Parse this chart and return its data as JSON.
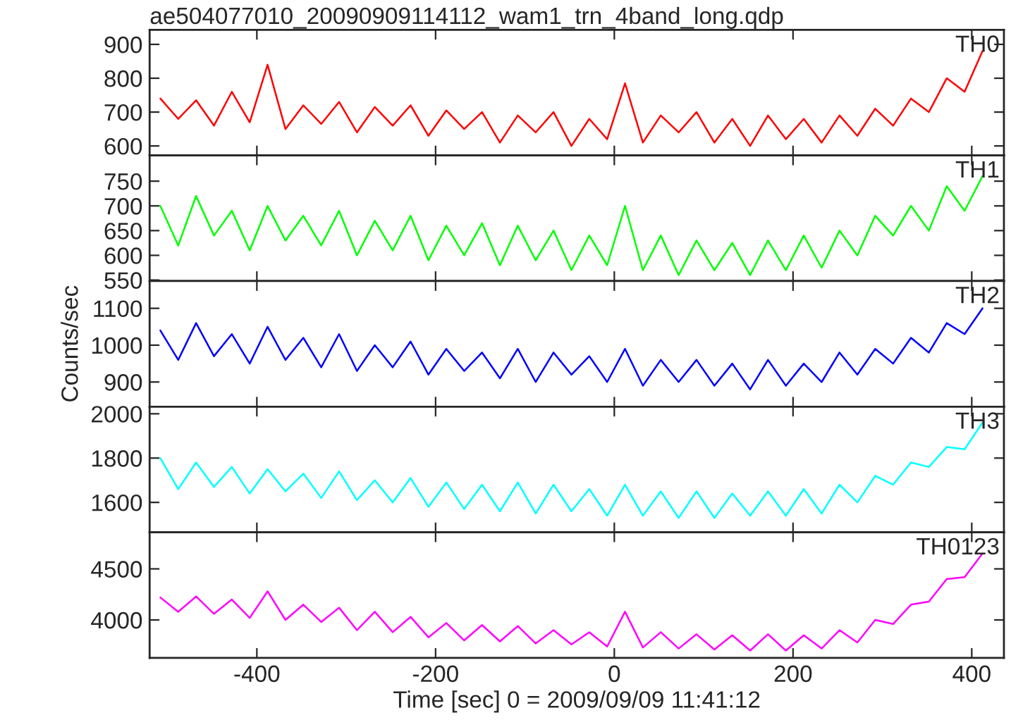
{
  "chart_data": [
    {
      "type": "line",
      "title": "ae504077010_20090909114112_wam1_trn_4band_long.qdp",
      "xlim": [
        -520,
        436
      ],
      "xticks": [
        -400,
        -200,
        0,
        200,
        400
      ],
      "ylim": [
        572,
        943
      ],
      "yticks": [
        600,
        700,
        800,
        900
      ],
      "tick_labels": "y",
      "x": [
        -508,
        -488,
        -468,
        -448,
        -428,
        -408,
        -388,
        -368,
        -348,
        -328,
        -308,
        -288,
        -268,
        -248,
        -228,
        -208,
        -188,
        -168,
        -148,
        -128,
        -108,
        -88,
        -68,
        -48,
        -28,
        -8,
        12,
        32,
        52,
        72,
        92,
        112,
        132,
        152,
        172,
        192,
        212,
        232,
        252,
        272,
        292,
        312,
        332,
        352,
        372,
        392,
        412
      ],
      "series": [
        {
          "name": "TH0",
          "color": "#ff0000",
          "values": [
            740,
            680,
            735,
            660,
            760,
            670,
            840,
            650,
            720,
            665,
            730,
            640,
            715,
            660,
            720,
            630,
            705,
            650,
            700,
            610,
            690,
            640,
            700,
            600,
            680,
            620,
            785,
            610,
            690,
            640,
            700,
            610,
            680,
            600,
            690,
            620,
            680,
            610,
            690,
            630,
            710,
            660,
            740,
            700,
            800,
            760,
            880
          ]
        }
      ]
    },
    {
      "type": "line",
      "xlim": [
        -520,
        436
      ],
      "xticks": [
        -400,
        -200,
        0,
        200,
        400
      ],
      "ylim": [
        548,
        802
      ],
      "yticks": [
        550,
        600,
        650,
        700,
        750
      ],
      "tick_labels": "y",
      "x": [
        -508,
        -488,
        -468,
        -448,
        -428,
        -408,
        -388,
        -368,
        -348,
        -328,
        -308,
        -288,
        -268,
        -248,
        -228,
        -208,
        -188,
        -168,
        -148,
        -128,
        -108,
        -88,
        -68,
        -48,
        -28,
        -8,
        12,
        32,
        52,
        72,
        92,
        112,
        132,
        152,
        172,
        192,
        212,
        232,
        252,
        272,
        292,
        312,
        332,
        352,
        372,
        392,
        412
      ],
      "series": [
        {
          "name": "TH1",
          "color": "#00ff00",
          "values": [
            700,
            620,
            720,
            640,
            690,
            610,
            700,
            630,
            680,
            620,
            690,
            600,
            670,
            610,
            680,
            590,
            660,
            600,
            665,
            580,
            660,
            590,
            650,
            570,
            640,
            580,
            700,
            570,
            640,
            560,
            630,
            570,
            625,
            560,
            630,
            570,
            640,
            575,
            650,
            600,
            680,
            640,
            700,
            650,
            740,
            690,
            760
          ]
        }
      ]
    },
    {
      "type": "line",
      "ylabel": "Counts/sec",
      "xlim": [
        -520,
        436
      ],
      "xticks": [
        -400,
        -200,
        0,
        200,
        400
      ],
      "ylim": [
        833,
        1174
      ],
      "yticks": [
        900,
        1000,
        1100
      ],
      "tick_labels": "y",
      "x": [
        -508,
        -488,
        -468,
        -448,
        -428,
        -408,
        -388,
        -368,
        -348,
        -328,
        -308,
        -288,
        -268,
        -248,
        -228,
        -208,
        -188,
        -168,
        -148,
        -128,
        -108,
        -88,
        -68,
        -48,
        -28,
        -8,
        12,
        32,
        52,
        72,
        92,
        112,
        132,
        152,
        172,
        192,
        212,
        232,
        252,
        272,
        292,
        312,
        332,
        352,
        372,
        392,
        412
      ],
      "series": [
        {
          "name": "TH2",
          "color": "#0000ff",
          "values": [
            1040,
            960,
            1060,
            970,
            1030,
            950,
            1050,
            960,
            1020,
            940,
            1030,
            930,
            1000,
            940,
            1010,
            920,
            990,
            930,
            980,
            910,
            990,
            900,
            980,
            920,
            970,
            900,
            990,
            890,
            960,
            900,
            960,
            890,
            950,
            880,
            960,
            890,
            950,
            900,
            980,
            920,
            990,
            950,
            1020,
            980,
            1060,
            1030,
            1100
          ]
        }
      ]
    },
    {
      "type": "line",
      "xlim": [
        -520,
        436
      ],
      "xticks": [
        -400,
        -200,
        0,
        200,
        400
      ],
      "ylim": [
        1465,
        2032
      ],
      "yticks": [
        1600,
        1800,
        2000
      ],
      "tick_labels": "y",
      "x": [
        -508,
        -488,
        -468,
        -448,
        -428,
        -408,
        -388,
        -368,
        -348,
        -328,
        -308,
        -288,
        -268,
        -248,
        -228,
        -208,
        -188,
        -168,
        -148,
        -128,
        -108,
        -88,
        -68,
        -48,
        -28,
        -8,
        12,
        32,
        52,
        72,
        92,
        112,
        132,
        152,
        172,
        192,
        212,
        232,
        252,
        272,
        292,
        312,
        332,
        352,
        372,
        392,
        412
      ],
      "series": [
        {
          "name": "TH3",
          "color": "#00ffff",
          "values": [
            1800,
            1660,
            1780,
            1670,
            1760,
            1640,
            1750,
            1650,
            1730,
            1620,
            1740,
            1610,
            1700,
            1600,
            1710,
            1580,
            1690,
            1570,
            1680,
            1560,
            1690,
            1550,
            1680,
            1560,
            1660,
            1540,
            1680,
            1540,
            1650,
            1530,
            1650,
            1530,
            1640,
            1540,
            1650,
            1540,
            1660,
            1550,
            1680,
            1600,
            1720,
            1680,
            1780,
            1760,
            1850,
            1840,
            1960
          ]
        }
      ]
    },
    {
      "type": "line",
      "xlabel": "Time [sec] 0 = 2009/09/09 11:41:12",
      "xlim": [
        -520,
        436
      ],
      "xticks": [
        -400,
        -200,
        0,
        200,
        400
      ],
      "ylim": [
        3628,
        4858
      ],
      "yticks": [
        4000,
        4500
      ],
      "x": [
        -508,
        -488,
        -468,
        -448,
        -428,
        -408,
        -388,
        -368,
        -348,
        -328,
        -308,
        -288,
        -268,
        -248,
        -228,
        -208,
        -188,
        -168,
        -148,
        -128,
        -108,
        -88,
        -68,
        -48,
        -28,
        -8,
        12,
        32,
        52,
        72,
        92,
        112,
        132,
        152,
        172,
        192,
        212,
        232,
        252,
        272,
        292,
        312,
        332,
        352,
        372,
        392,
        412
      ],
      "series": [
        {
          "name": "TH0123",
          "color": "#ff00ff",
          "values": [
            4220,
            4080,
            4230,
            4060,
            4200,
            4020,
            4280,
            4000,
            4150,
            3980,
            4120,
            3900,
            4080,
            3880,
            4030,
            3830,
            3970,
            3800,
            3950,
            3790,
            3940,
            3770,
            3900,
            3760,
            3880,
            3740,
            4080,
            3730,
            3880,
            3720,
            3860,
            3710,
            3850,
            3700,
            3860,
            3700,
            3850,
            3720,
            3900,
            3780,
            4000,
            3960,
            4150,
            4180,
            4400,
            4420,
            4650
          ]
        }
      ]
    }
  ]
}
